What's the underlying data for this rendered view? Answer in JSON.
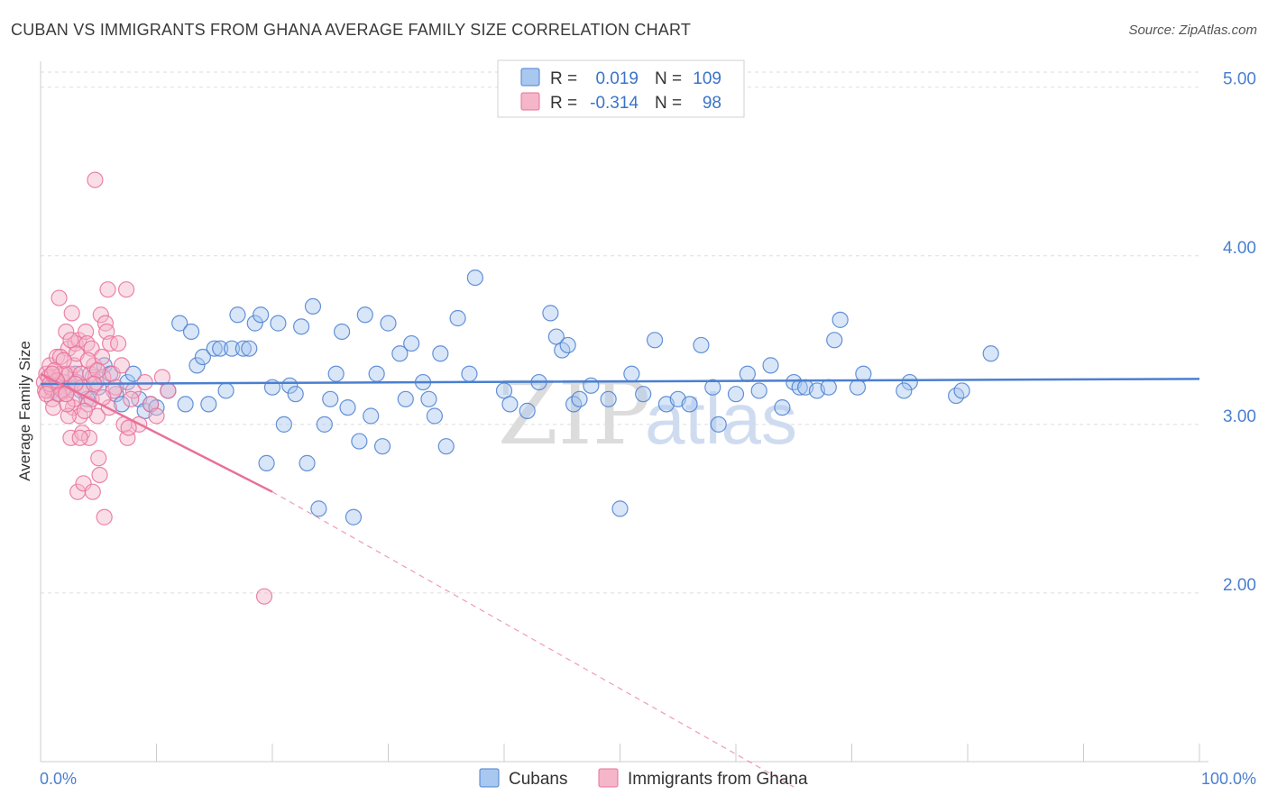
{
  "title": "CUBAN VS IMMIGRANTS FROM GHANA AVERAGE FAMILY SIZE CORRELATION CHART",
  "source": "Source: ZipAtlas.com",
  "colors": {
    "blue": "#4a7fd0",
    "blue_fill": "#a9c8ef",
    "pink": "#e8709a",
    "pink_fill": "#f5b6c9",
    "grid": "#dddddd"
  },
  "legend": {
    "r_label": "R =",
    "n_label": "N =",
    "rows": [
      {
        "r": "0.019",
        "n": "109"
      },
      {
        "r": "-0.314",
        "n": "98"
      }
    ]
  },
  "watermark": {
    "zip": "ZIP",
    "atlas": "atlas"
  },
  "chart_data": {
    "type": "scatter",
    "title": "CUBAN VS IMMIGRANTS FROM GHANA AVERAGE FAMILY SIZE CORRELATION CHART",
    "xlabel": "",
    "ylabel": "Average Family Size",
    "xlim": [
      0,
      100
    ],
    "ylim": [
      1.0,
      5.1
    ],
    "x_tick_labels": [
      "0.0%",
      "100.0%"
    ],
    "y_ticks": [
      2.0,
      3.0,
      4.0,
      5.0
    ],
    "y_tick_labels": [
      "2.00",
      "3.00",
      "4.00",
      "5.00"
    ],
    "grid": true,
    "series": [
      {
        "name": "Cubans",
        "trend": {
          "x": [
            0,
            100
          ],
          "y": [
            3.24,
            3.27
          ],
          "dashed_from": null
        },
        "points": [
          [
            1.0,
            3.2
          ],
          [
            1.5,
            3.18
          ],
          [
            2.0,
            3.25
          ],
          [
            2.5,
            3.22
          ],
          [
            3.0,
            3.3
          ],
          [
            3.5,
            3.2
          ],
          [
            4.0,
            3.15
          ],
          [
            4.5,
            3.28
          ],
          [
            5.0,
            3.22
          ],
          [
            5.5,
            3.35
          ],
          [
            6.0,
            3.3
          ],
          [
            6.5,
            3.18
          ],
          [
            7.0,
            3.12
          ],
          [
            7.5,
            3.25
          ],
          [
            8.0,
            3.3
          ],
          [
            8.5,
            3.15
          ],
          [
            9.0,
            3.08
          ],
          [
            9.5,
            3.12
          ],
          [
            10.0,
            3.1
          ],
          [
            11.0,
            3.2
          ],
          [
            12.0,
            3.6
          ],
          [
            12.5,
            3.12
          ],
          [
            13.0,
            3.55
          ],
          [
            13.5,
            3.35
          ],
          [
            14.0,
            3.4
          ],
          [
            14.5,
            3.12
          ],
          [
            15.0,
            3.45
          ],
          [
            15.5,
            3.45
          ],
          [
            16.0,
            3.2
          ],
          [
            16.5,
            3.45
          ],
          [
            17.0,
            3.65
          ],
          [
            17.5,
            3.45
          ],
          [
            18.0,
            3.45
          ],
          [
            18.5,
            3.6
          ],
          [
            19.0,
            3.65
          ],
          [
            19.5,
            2.77
          ],
          [
            20.0,
            3.22
          ],
          [
            20.5,
            3.6
          ],
          [
            21.0,
            3.0
          ],
          [
            21.5,
            3.23
          ],
          [
            22.0,
            3.18
          ],
          [
            22.5,
            3.58
          ],
          [
            23.0,
            2.77
          ],
          [
            23.5,
            3.7
          ],
          [
            24.0,
            2.5
          ],
          [
            24.5,
            3.0
          ],
          [
            25.0,
            3.15
          ],
          [
            25.5,
            3.3
          ],
          [
            26.0,
            3.55
          ],
          [
            26.5,
            3.1
          ],
          [
            27.0,
            2.45
          ],
          [
            27.5,
            2.9
          ],
          [
            28.0,
            3.65
          ],
          [
            28.5,
            3.05
          ],
          [
            29.0,
            3.3
          ],
          [
            29.5,
            2.87
          ],
          [
            30.0,
            3.6
          ],
          [
            31.0,
            3.42
          ],
          [
            31.5,
            3.15
          ],
          [
            32.0,
            3.48
          ],
          [
            33.0,
            3.25
          ],
          [
            33.5,
            3.15
          ],
          [
            34.0,
            3.05
          ],
          [
            34.5,
            3.42
          ],
          [
            35.0,
            2.87
          ],
          [
            36.0,
            3.63
          ],
          [
            37.0,
            3.3
          ],
          [
            37.5,
            3.87
          ],
          [
            40.0,
            3.2
          ],
          [
            42.0,
            3.08
          ],
          [
            43.0,
            3.25
          ],
          [
            44.0,
            3.66
          ],
          [
            44.5,
            3.52
          ],
          [
            45.0,
            3.44
          ],
          [
            45.5,
            3.47
          ],
          [
            46.0,
            3.12
          ],
          [
            46.5,
            3.15
          ],
          [
            47.5,
            3.23
          ],
          [
            49.0,
            3.15
          ],
          [
            50.0,
            2.5
          ],
          [
            51.0,
            3.3
          ],
          [
            52.0,
            3.18
          ],
          [
            53.0,
            3.5
          ],
          [
            54.0,
            3.12
          ],
          [
            55.0,
            3.15
          ],
          [
            56.0,
            3.12
          ],
          [
            57.0,
            3.47
          ],
          [
            58.0,
            3.22
          ],
          [
            60.0,
            3.18
          ],
          [
            61.0,
            3.3
          ],
          [
            62.0,
            3.2
          ],
          [
            63.0,
            3.35
          ],
          [
            64.0,
            3.1
          ],
          [
            65.0,
            3.25
          ],
          [
            65.5,
            3.22
          ],
          [
            66.0,
            3.22
          ],
          [
            67.0,
            3.2
          ],
          [
            68.0,
            3.22
          ],
          [
            68.5,
            3.5
          ],
          [
            69.0,
            3.62
          ],
          [
            70.5,
            3.22
          ],
          [
            71.0,
            3.3
          ],
          [
            75.0,
            3.25
          ],
          [
            79.0,
            3.17
          ],
          [
            79.5,
            3.2
          ],
          [
            82.0,
            3.42
          ],
          [
            74.5,
            3.2
          ],
          [
            58.5,
            3.0
          ],
          [
            40.5,
            3.12
          ]
        ]
      },
      {
        "name": "Immigrants from Ghana",
        "trend": {
          "x": [
            0,
            20
          ],
          "y": [
            3.3,
            2.6
          ],
          "dashed_to": [
            65,
            0.85
          ]
        },
        "points": [
          [
            0.3,
            3.25
          ],
          [
            0.5,
            3.3
          ],
          [
            0.6,
            3.2
          ],
          [
            0.8,
            3.35
          ],
          [
            1.0,
            3.15
          ],
          [
            1.2,
            3.28
          ],
          [
            1.4,
            3.4
          ],
          [
            1.5,
            3.22
          ],
          [
            1.6,
            3.75
          ],
          [
            1.8,
            3.3
          ],
          [
            2.0,
            3.25
          ],
          [
            2.2,
            3.55
          ],
          [
            2.3,
            3.2
          ],
          [
            2.4,
            3.45
          ],
          [
            2.5,
            3.3
          ],
          [
            2.6,
            2.92
          ],
          [
            2.7,
            3.66
          ],
          [
            2.8,
            3.1
          ],
          [
            2.9,
            3.35
          ],
          [
            3.0,
            3.48
          ],
          [
            3.1,
            3.25
          ],
          [
            3.2,
            2.6
          ],
          [
            3.3,
            3.5
          ],
          [
            3.4,
            3.05
          ],
          [
            3.5,
            3.3
          ],
          [
            3.6,
            2.95
          ],
          [
            3.7,
            2.65
          ],
          [
            3.8,
            3.2
          ],
          [
            3.9,
            3.55
          ],
          [
            4.0,
            3.48
          ],
          [
            4.1,
            3.12
          ],
          [
            4.2,
            2.92
          ],
          [
            4.3,
            3.3
          ],
          [
            4.4,
            3.45
          ],
          [
            4.5,
            2.6
          ],
          [
            4.6,
            3.35
          ],
          [
            4.7,
            4.45
          ],
          [
            4.8,
            3.25
          ],
          [
            4.9,
            3.05
          ],
          [
            5.0,
            2.8
          ],
          [
            5.1,
            2.7
          ],
          [
            5.2,
            3.65
          ],
          [
            5.3,
            3.4
          ],
          [
            5.4,
            3.28
          ],
          [
            5.5,
            2.45
          ],
          [
            5.6,
            3.6
          ],
          [
            5.7,
            3.55
          ],
          [
            5.8,
            3.8
          ],
          [
            6.0,
            3.48
          ],
          [
            6.2,
            3.3
          ],
          [
            6.5,
            3.22
          ],
          [
            7.0,
            3.35
          ],
          [
            7.5,
            2.92
          ],
          [
            8.0,
            3.2
          ],
          [
            8.5,
            3.0
          ],
          [
            9.0,
            3.25
          ],
          [
            9.5,
            3.12
          ],
          [
            10.0,
            3.05
          ],
          [
            10.5,
            3.28
          ],
          [
            11.0,
            3.2
          ],
          [
            19.3,
            1.98
          ],
          [
            7.2,
            3.0
          ],
          [
            7.8,
            3.15
          ],
          [
            7.4,
            3.8
          ],
          [
            1.1,
            3.1
          ],
          [
            1.3,
            3.25
          ],
          [
            1.7,
            3.4
          ],
          [
            1.9,
            3.2
          ],
          [
            2.1,
            3.3
          ],
          [
            2.9,
            3.15
          ],
          [
            3.1,
            3.42
          ],
          [
            3.6,
            3.22
          ],
          [
            4.4,
            3.15
          ],
          [
            0.4,
            3.2
          ],
          [
            0.7,
            3.28
          ],
          [
            0.9,
            3.22
          ],
          [
            1.6,
            3.18
          ],
          [
            2.4,
            3.05
          ],
          [
            3.4,
            2.92
          ],
          [
            4.1,
            3.38
          ],
          [
            5.9,
            3.1
          ],
          [
            6.7,
            3.48
          ],
          [
            2.6,
            3.5
          ],
          [
            2.0,
            3.38
          ],
          [
            1.2,
            3.32
          ],
          [
            0.8,
            3.24
          ],
          [
            3.8,
            3.08
          ],
          [
            4.9,
            3.32
          ],
          [
            2.3,
            3.12
          ],
          [
            1.4,
            3.26
          ],
          [
            6.3,
            3.2
          ],
          [
            7.6,
            2.98
          ],
          [
            3.0,
            3.24
          ],
          [
            2.2,
            3.18
          ],
          [
            4.6,
            3.24
          ],
          [
            5.4,
            3.16
          ],
          [
            0.5,
            3.18
          ],
          [
            1.0,
            3.3
          ]
        ]
      }
    ]
  },
  "bottom_legend": [
    {
      "label": "Cubans"
    },
    {
      "label": "Immigrants from Ghana"
    }
  ]
}
